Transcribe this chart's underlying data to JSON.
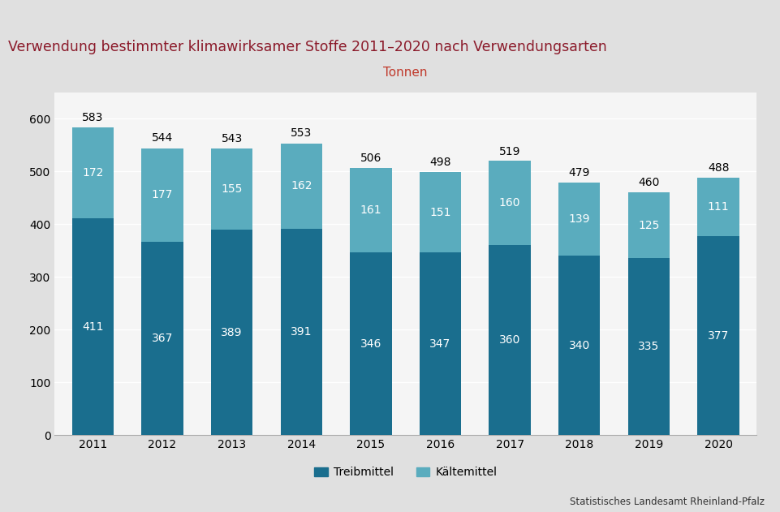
{
  "title": "Verwendung bestimmter klimawirksamer Stoffe 2011–2020 nach Verwendungsarten",
  "ylabel_annotation": "Tonnen",
  "years": [
    "2011",
    "2012",
    "2013",
    "2014",
    "2015",
    "2016",
    "2017",
    "2018",
    "2019",
    "2020"
  ],
  "treibmittel": [
    411,
    367,
    389,
    391,
    346,
    347,
    360,
    340,
    335,
    377
  ],
  "kaeltemittel": [
    172,
    177,
    155,
    162,
    161,
    151,
    160,
    139,
    125,
    111
  ],
  "totals": [
    583,
    544,
    543,
    553,
    506,
    498,
    519,
    479,
    460,
    488
  ],
  "color_treibmittel": "#1a6e8e",
  "color_kaeltemittel": "#5aacbe",
  "title_color": "#8b1a2a",
  "tonnen_color": "#c0392b",
  "page_bg_color": "#e0e0e0",
  "title_area_bg": "#e8e8e8",
  "plot_bg_color": "#f5f5f5",
  "top_bar_color": "#7b1020",
  "legend_label_treibmittel": "Treibmittel",
  "legend_label_kaeltemittel": "Kältemittel",
  "source_text": "Statistisches Landesamt Rheinland-Pfalz",
  "ylim": [
    0,
    650
  ],
  "yticks": [
    0,
    100,
    200,
    300,
    400,
    500,
    600
  ],
  "title_fontsize": 12.5,
  "bar_width": 0.6,
  "value_fontsize": 10,
  "total_fontsize": 10,
  "axis_fontsize": 10
}
